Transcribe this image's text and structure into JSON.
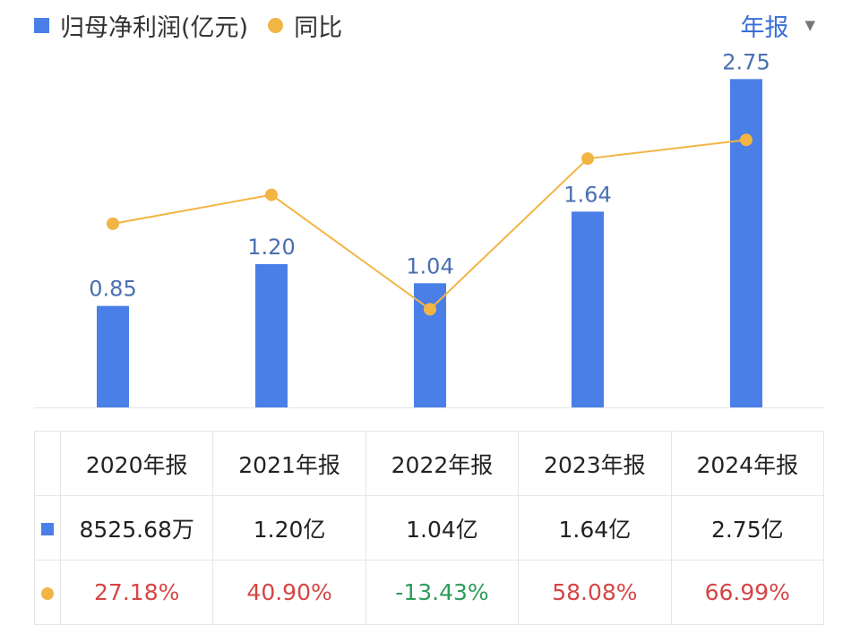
{
  "legend": {
    "bar_label": "归母净利润(亿元)",
    "line_label": "同比"
  },
  "period_selector": {
    "label": "年报"
  },
  "colors": {
    "bar": "#4a7fe8",
    "line": "#f2b543",
    "bar_label": "#4a6fb0",
    "positive": "#d64545",
    "negative": "#2e9b5a",
    "accent": "#3a6fd8"
  },
  "chart_data": {
    "type": "bar",
    "categories": [
      "2020年报",
      "2021年报",
      "2022年报",
      "2023年报",
      "2024年报"
    ],
    "series": [
      {
        "name": "归母净利润(亿元)",
        "type": "bar",
        "values": [
          0.85,
          1.2,
          1.04,
          1.64,
          2.75
        ],
        "labels": [
          "0.85",
          "1.20",
          "1.04",
          "1.64",
          "2.75"
        ]
      },
      {
        "name": "同比",
        "type": "line",
        "values": [
          27.18,
          40.9,
          -13.43,
          58.08,
          66.99
        ]
      }
    ],
    "ylim": [
      0,
      3.0
    ],
    "y2lim": [
      -60,
      110
    ],
    "grid": false
  },
  "table": {
    "headers": [
      "2020年报",
      "2021年报",
      "2022年报",
      "2023年报",
      "2024年报"
    ],
    "rows": [
      {
        "kind": "bar",
        "cells": [
          "8525.68万",
          "1.20亿",
          "1.04亿",
          "1.64亿",
          "2.75亿"
        ]
      },
      {
        "kind": "line",
        "cells": [
          "27.18%",
          "40.90%",
          "-13.43%",
          "58.08%",
          "66.99%"
        ]
      }
    ]
  }
}
